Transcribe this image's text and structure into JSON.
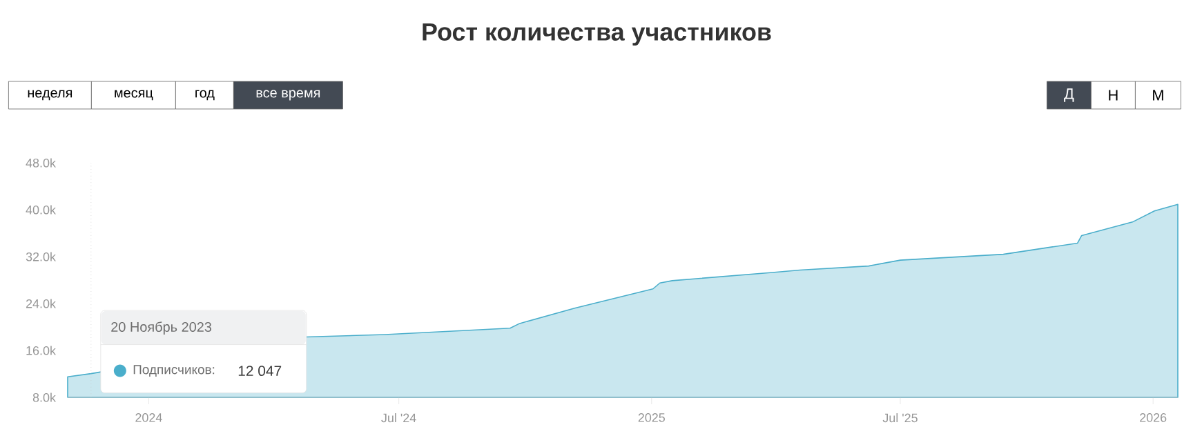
{
  "chart_data": {
    "type": "area",
    "title": "Рост количества участников",
    "x": [
      "2023-11-03",
      "2023-11-20",
      "2024-04-24",
      "2024-06-21",
      "2024-09-20",
      "2024-09-27",
      "2024-11-06",
      "2025-01-02",
      "2025-01-07",
      "2025-01-16",
      "2025-03-30",
      "2025-04-19",
      "2025-06-08",
      "2025-07-01",
      "2025-09-14",
      "2025-11-07",
      "2025-11-10",
      "2025-12-17",
      "2026-01-02",
      "2026-01-19"
    ],
    "series": [
      {
        "color": "#4aaecb",
        "values": [
          11500,
          12047,
          18300,
          18700,
          19800,
          20600,
          23200,
          26500,
          27500,
          27900,
          29300,
          29700,
          30400,
          31400,
          32400,
          34300,
          35600,
          37900,
          39800,
          40900
        ]
      }
    ],
    "xlim": [
      "2023-11-03",
      "2026-01-19"
    ],
    "xticks": [
      {
        "value": "2024-01-01",
        "label": "2024"
      },
      {
        "value": "2024-07-01",
        "label": "Jul '24"
      },
      {
        "value": "2025-01-01",
        "label": "2025"
      },
      {
        "value": "2025-07-01",
        "label": "Jul '25"
      },
      {
        "value": "2026-01-01",
        "label": "2026"
      }
    ],
    "ylim": [
      8000,
      48000
    ],
    "yticks": [
      {
        "value": 8000,
        "label": "8.0k"
      },
      {
        "value": 16000,
        "label": "16.0k"
      },
      {
        "value": 24000,
        "label": "24.0k"
      },
      {
        "value": 32000,
        "label": "32.0k"
      },
      {
        "value": 40000,
        "label": "40.0k"
      },
      {
        "value": 48000,
        "label": "48.0k"
      }
    ],
    "ref_lines": [
      {
        "axis": "x",
        "value": "2023-11-20",
        "color": "#c8c8c8",
        "line_style": "dotted"
      }
    ],
    "annotations": [
      "неделя",
      "месяц",
      "год",
      "все время",
      "Д",
      "Н",
      "М",
      "20 Ноябрь 2023",
      "Подписчиков:",
      "12 047"
    ]
  }
}
